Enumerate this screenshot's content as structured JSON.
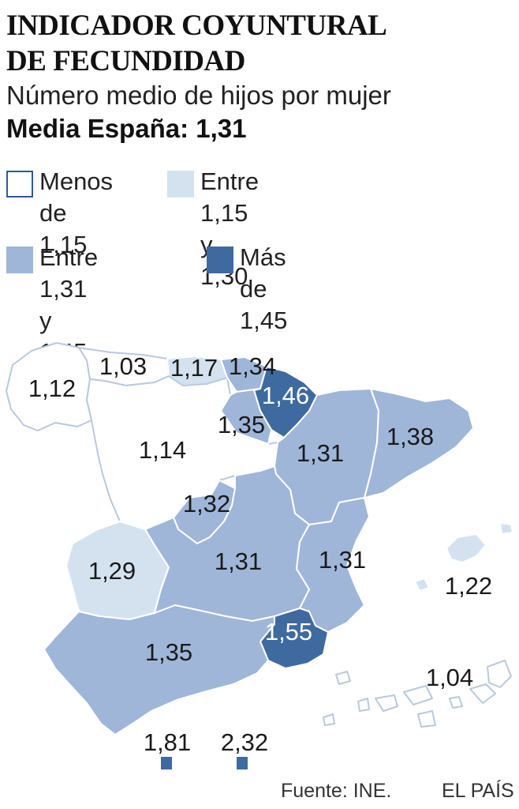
{
  "title": "INDICADOR COYUNTURAL\nDE FECUNDIDAD",
  "subtitle": "Número medio de hijos por mujer",
  "average": "Media España: 1,31",
  "legend": [
    {
      "label": "Menos\nde 1,15",
      "color": "#ffffff",
      "border": "#2c5b95"
    },
    {
      "label": "Entre 1,15\ny 1,30",
      "color": "#d4e2f0"
    },
    {
      "label": "Entre 1,31\ny 1,45",
      "color": "#9fb6d9"
    },
    {
      "label": "Más de\n1,45",
      "color": "#3f6aa0"
    }
  ],
  "regions": [
    {
      "name": "Galicia",
      "value": "1,12",
      "class": "lt115"
    },
    {
      "name": "Asturias",
      "value": "1,03",
      "class": "lt115"
    },
    {
      "name": "Cantabria",
      "value": "1,17",
      "class": "115_130"
    },
    {
      "name": "País Vasco",
      "value": "1,34",
      "class": "131_145"
    },
    {
      "name": "Navarra",
      "value": "1,46",
      "class": "gt145"
    },
    {
      "name": "La Rioja",
      "value": "1,35",
      "class": "131_145"
    },
    {
      "name": "Castilla y León",
      "value": "1,14",
      "class": "lt115"
    },
    {
      "name": "Aragón",
      "value": "1,31",
      "class": "131_145"
    },
    {
      "name": "Cataluña",
      "value": "1,38",
      "class": "131_145"
    },
    {
      "name": "Madrid",
      "value": "1,32",
      "class": "131_145"
    },
    {
      "name": "Extremadura",
      "value": "1,29",
      "class": "115_130"
    },
    {
      "name": "Castilla-La Mancha",
      "value": "1,31",
      "class": "131_145"
    },
    {
      "name": "Comunidad Valenciana",
      "value": "1,31",
      "class": "131_145"
    },
    {
      "name": "Baleares",
      "value": "1,22",
      "class": "115_130"
    },
    {
      "name": "Murcia",
      "value": "1,55",
      "class": "gt145"
    },
    {
      "name": "Andalucía",
      "value": "1,35",
      "class": "131_145"
    },
    {
      "name": "Canarias",
      "value": "1,04",
      "class": "lt115"
    },
    {
      "name": "Ceuta",
      "value": "1,81",
      "class": "gt145"
    },
    {
      "name": "Melilla",
      "value": "2,32",
      "class": "gt145"
    }
  ],
  "source": "Fuente: INE.",
  "brand": "EL PAÍS"
}
